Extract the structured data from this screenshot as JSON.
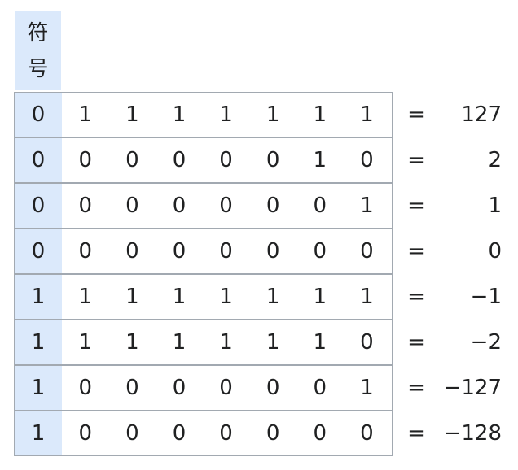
{
  "header": {
    "sign_label_line1": "符",
    "sign_label_line2": "号"
  },
  "equals_symbol": "=",
  "rows": [
    {
      "bits": [
        "0",
        "1",
        "1",
        "1",
        "1",
        "1",
        "1",
        "1"
      ],
      "value": "127"
    },
    {
      "bits": [
        "0",
        "0",
        "0",
        "0",
        "0",
        "0",
        "1",
        "0"
      ],
      "value": "2"
    },
    {
      "bits": [
        "0",
        "0",
        "0",
        "0",
        "0",
        "0",
        "0",
        "1"
      ],
      "value": "1"
    },
    {
      "bits": [
        "0",
        "0",
        "0",
        "0",
        "0",
        "0",
        "0",
        "0"
      ],
      "value": "0"
    },
    {
      "bits": [
        "1",
        "1",
        "1",
        "1",
        "1",
        "1",
        "1",
        "1"
      ],
      "value": "−1"
    },
    {
      "bits": [
        "1",
        "1",
        "1",
        "1",
        "1",
        "1",
        "1",
        "0"
      ],
      "value": "−2"
    },
    {
      "bits": [
        "1",
        "0",
        "0",
        "0",
        "0",
        "0",
        "0",
        "1"
      ],
      "value": "−127"
    },
    {
      "bits": [
        "1",
        "0",
        "0",
        "0",
        "0",
        "0",
        "0",
        "0"
      ],
      "value": "−128"
    }
  ],
  "colors": {
    "sign_highlight": "#dbe9fb",
    "border": "#a2a9b1",
    "text": "#202122"
  }
}
